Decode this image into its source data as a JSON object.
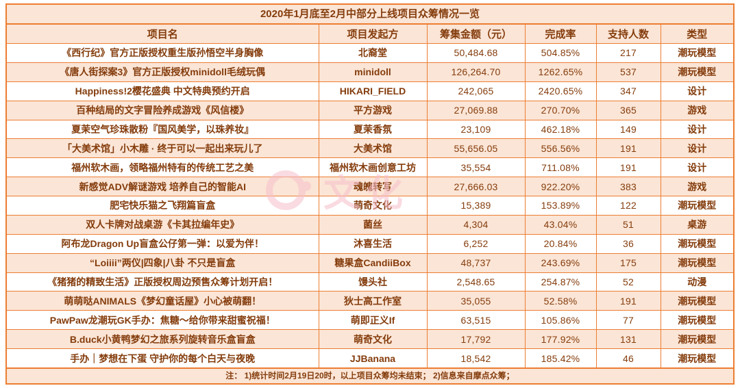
{
  "colors": {
    "border": "#ED7D31",
    "fill": "#FBE5D6",
    "text": "#843C0C",
    "watermark": "#F6BFCB"
  },
  "watermark": "文化",
  "footnote": "注：  1)统计时间2月19日20时，以上项目众筹均未结束；  2)信息来自摩点众筹；",
  "chart_data": {
    "type": "table",
    "title": "2020年1月底至2月中部分上线项目众筹情况一览",
    "columns": [
      "项目名",
      "项目发起方",
      "筹集金额（元）",
      "完成率",
      "支持人数",
      "类型"
    ],
    "rows": [
      [
        "《西行纪》官方正版授权重生版孙悟空半身胸像",
        "北裔堂",
        "50,484.68",
        "504.85%",
        "217",
        "潮玩模型"
      ],
      [
        "《唐人街探案3》官方正版授权minidoll毛绒玩偶",
        "minidoll",
        "126,264.70",
        "1262.65%",
        "537",
        "潮玩模型"
      ],
      [
        "Happiness!2樱花盛典 中文特典预约开启",
        "HIKARI_FIELD",
        "242,065",
        "2420.65%",
        "347",
        "设计"
      ],
      [
        "百种结局的文字冒险养成游戏《风信楼》",
        "平方游戏",
        "27,069.88",
        "270.70%",
        "365",
        "游戏"
      ],
      [
        "夏茉空气珍珠散粉『国风美学，以珠养妆』",
        "夏茉香氛",
        "23,109",
        "462.18%",
        "149",
        "设计"
      ],
      [
        "「大美术馆」小木雕 · 终于可以一起出来玩儿了",
        "大美术馆",
        "55,656.05",
        "556.56%",
        "191",
        "设计"
      ],
      [
        "福州软木画，领略福州特有的传统工艺之美",
        "福州软木画创意工坊",
        "35,554",
        "711.08%",
        "191",
        "设计"
      ],
      [
        "新感觉ADV解谜游戏 培养自己的智能AI",
        "魂魄转写",
        "27,666.03",
        "922.20%",
        "383",
        "游戏"
      ],
      [
        "肥宅快乐猫之飞翔篇盲盒",
        "萌奇文化",
        "15,389",
        "153.89%",
        "122",
        "潮玩模型"
      ],
      [
        "双人卡牌对战桌游《卡其拉编年史》",
        "菌丝",
        "4,304",
        "43.04%",
        "51",
        "桌游"
      ],
      [
        "阿布龙Dragon Up盲盒公仔第一弹：以爱为伴！",
        "沐喜生活",
        "6,252",
        "20.84%",
        "36",
        "潮玩模型"
      ],
      [
        "“Loiiii”两仪|四象|八卦 不只是盲盒",
        "糖果盒CandiiBox",
        "48,737",
        "243.69%",
        "175",
        "潮玩模型"
      ],
      [
        "《猪猪的精致生活》正版授权周边预售众筹计划开启！",
        "馒头社",
        "2,548.65",
        "254.87%",
        "52",
        "动漫"
      ],
      [
        "萌萌哒ANIMALS《梦幻童话屋》小心被萌翻！",
        "狄士高工作室",
        "35,055",
        "52.58%",
        "191",
        "潮玩模型"
      ],
      [
        "PawPaw龙潮玩GK手办：焦糖～给你带来甜蜜祝福！",
        "萌即正义If",
        "63,515",
        "105.86%",
        "77",
        "潮玩模型"
      ],
      [
        "B.duck小黄鸭梦幻之旅系列旋转音乐盒盲盒",
        "萌奇文化",
        "17,792",
        "177.92%",
        "131",
        "潮玩模型"
      ],
      [
        "手办｜梦想在下蛋 守护你的每个白天与夜晚",
        "JJBanana",
        "18,542",
        "185.42%",
        "46",
        "潮玩模型"
      ]
    ]
  }
}
